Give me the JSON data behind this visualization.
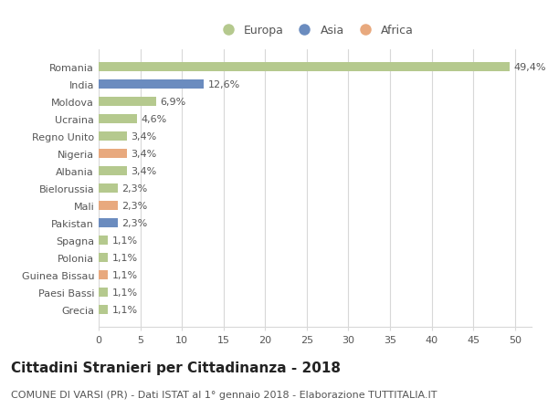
{
  "countries": [
    "Grecia",
    "Paesi Bassi",
    "Guinea Bissau",
    "Polonia",
    "Spagna",
    "Pakistan",
    "Mali",
    "Bielorussia",
    "Albania",
    "Nigeria",
    "Regno Unito",
    "Ucraina",
    "Moldova",
    "India",
    "Romania"
  ],
  "values": [
    1.1,
    1.1,
    1.1,
    1.1,
    1.1,
    2.3,
    2.3,
    2.3,
    3.4,
    3.4,
    3.4,
    4.6,
    6.9,
    12.6,
    49.4
  ],
  "labels": [
    "1,1%",
    "1,1%",
    "1,1%",
    "1,1%",
    "1,1%",
    "2,3%",
    "2,3%",
    "2,3%",
    "3,4%",
    "3,4%",
    "3,4%",
    "4,6%",
    "6,9%",
    "12,6%",
    "49,4%"
  ],
  "continents": [
    "Europa",
    "Europa",
    "Africa",
    "Europa",
    "Europa",
    "Asia",
    "Africa",
    "Europa",
    "Europa",
    "Africa",
    "Europa",
    "Europa",
    "Europa",
    "Asia",
    "Europa"
  ],
  "colors": {
    "Europa": "#b5c98e",
    "Asia": "#6b8cbf",
    "Africa": "#e8a97e"
  },
  "xlim": [
    0,
    52
  ],
  "xticks": [
    0,
    5,
    10,
    15,
    20,
    25,
    30,
    35,
    40,
    45,
    50
  ],
  "title": "Cittadini Stranieri per Cittadinanza - 2018",
  "subtitle": "COMUNE DI VARSI (PR) - Dati ISTAT al 1° gennaio 2018 - Elaborazione TUTTITALIA.IT",
  "background_color": "#ffffff",
  "grid_color": "#d8d8d8",
  "bar_height": 0.55,
  "label_fontsize": 8,
  "tick_fontsize": 8,
  "title_fontsize": 11,
  "subtitle_fontsize": 8
}
